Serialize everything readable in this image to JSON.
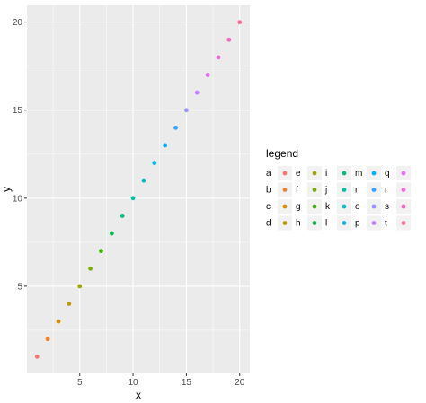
{
  "chart_data": {
    "type": "scatter",
    "xlabel": "x",
    "ylabel": "y",
    "xlim": [
      0.05,
      20.95
    ],
    "ylim": [
      0.05,
      20.95
    ],
    "x_ticks": [
      5,
      10,
      15,
      20
    ],
    "y_ticks": [
      5,
      10,
      15,
      20
    ],
    "x_tick_labels": [
      "5",
      "10",
      "15",
      "20"
    ],
    "y_tick_labels": [
      "5",
      "10",
      "15",
      "20"
    ],
    "grid": true,
    "panel_background": "#ebebeb",
    "legend": {
      "title": "legend",
      "placement": "right",
      "columns": 5
    },
    "series": [
      {
        "name": "a",
        "x": 1,
        "y": 1,
        "color": "#F8766D"
      },
      {
        "name": "b",
        "x": 2,
        "y": 2,
        "color": "#EA8331"
      },
      {
        "name": "c",
        "x": 3,
        "y": 3,
        "color": "#D89000"
      },
      {
        "name": "d",
        "x": 4,
        "y": 4,
        "color": "#C09B00"
      },
      {
        "name": "e",
        "x": 5,
        "y": 5,
        "color": "#A3A500"
      },
      {
        "name": "f",
        "x": 6,
        "y": 6,
        "color": "#7CAE00"
      },
      {
        "name": "g",
        "x": 7,
        "y": 7,
        "color": "#39B600"
      },
      {
        "name": "h",
        "x": 8,
        "y": 8,
        "color": "#00BB4E"
      },
      {
        "name": "i",
        "x": 9,
        "y": 9,
        "color": "#00BF7D"
      },
      {
        "name": "j",
        "x": 10,
        "y": 10,
        "color": "#00C1A3"
      },
      {
        "name": "k",
        "x": 11,
        "y": 11,
        "color": "#00BFC4"
      },
      {
        "name": "l",
        "x": 12,
        "y": 12,
        "color": "#00BAE0"
      },
      {
        "name": "m",
        "x": 13,
        "y": 13,
        "color": "#00B0F6"
      },
      {
        "name": "n",
        "x": 14,
        "y": 14,
        "color": "#35A2FF"
      },
      {
        "name": "o",
        "x": 15,
        "y": 15,
        "color": "#9590FF"
      },
      {
        "name": "p",
        "x": 16,
        "y": 16,
        "color": "#C77CFF"
      },
      {
        "name": "q",
        "x": 17,
        "y": 17,
        "color": "#E76BF3"
      },
      {
        "name": "r",
        "x": 18,
        "y": 18,
        "color": "#FA62DB"
      },
      {
        "name": "s",
        "x": 19,
        "y": 19,
        "color": "#FF62BC"
      },
      {
        "name": "t",
        "x": 20,
        "y": 20,
        "color": "#FF6C91"
      }
    ]
  }
}
